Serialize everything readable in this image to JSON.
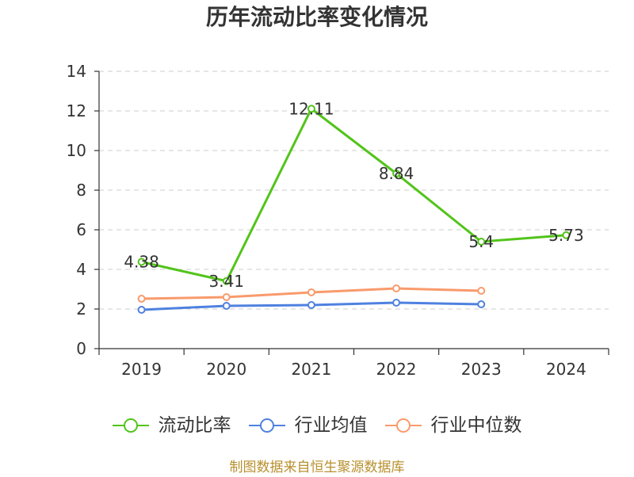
{
  "chart_data": {
    "type": "line",
    "title": "历年流动比率变化情况",
    "categories": [
      "2019",
      "2020",
      "2021",
      "2022",
      "2023",
      "2024"
    ],
    "ylim": [
      0,
      14
    ],
    "yticks": [
      0,
      2,
      4,
      6,
      8,
      10,
      12,
      14
    ],
    "grid": true,
    "grid_style": "dashed",
    "legend_position": "bottom",
    "series": [
      {
        "name": "流动比率",
        "color": "#52c41a",
        "values": [
          4.38,
          3.41,
          12.11,
          8.84,
          5.4,
          5.73
        ],
        "data_labels": true
      },
      {
        "name": "行业均值",
        "color": "#4f81e0",
        "values": [
          1.96,
          2.16,
          2.2,
          2.32,
          2.24,
          null
        ],
        "data_labels": false
      },
      {
        "name": "行业中位数",
        "color": "#f99a6c",
        "values": [
          2.52,
          2.6,
          2.84,
          3.04,
          2.92,
          null
        ],
        "data_labels": false
      }
    ]
  },
  "source": "制图数据来自恒生聚源数据库",
  "colors": {
    "axis": "#333333",
    "grid": "#cccccc",
    "label": "#333333",
    "source_text": "#b8902e"
  }
}
